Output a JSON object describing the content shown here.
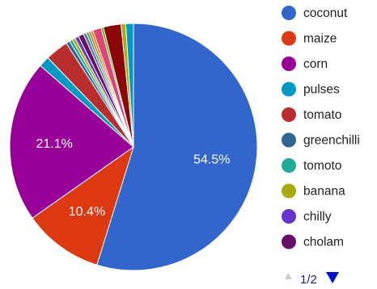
{
  "chart_data": {
    "type": "pie",
    "title": "",
    "slices": [
      {
        "label": "coconut",
        "value": 54.5,
        "color": "#3366cc",
        "display": "54.5%"
      },
      {
        "label": "maize",
        "value": 10.4,
        "color": "#dc3912",
        "display": "10.4%"
      },
      {
        "label": "corn",
        "value": 21.1,
        "color": "#990099",
        "display": "21.1%"
      },
      {
        "label": "pulses",
        "value": 1.4,
        "color": "#0099c6",
        "display": ""
      },
      {
        "label": "tomato",
        "value": 3.0,
        "color": "#b82e2e",
        "display": ""
      },
      {
        "label": "greenchilli",
        "value": 0.5,
        "color": "#316395",
        "display": ""
      },
      {
        "label": "tomoto",
        "value": 0.4,
        "color": "#22aa99",
        "display": ""
      },
      {
        "label": "banana",
        "value": 0.4,
        "color": "#aaaa11",
        "display": ""
      },
      {
        "label": "chilly",
        "value": 0.5,
        "color": "#6633cc",
        "display": ""
      },
      {
        "label": "cholam",
        "value": 0.7,
        "color": "#651067",
        "display": ""
      },
      {
        "label": "",
        "value": 0.4,
        "color": "#5574a6",
        "display": ""
      },
      {
        "label": "",
        "value": 0.3,
        "color": "#329262",
        "display": ""
      },
      {
        "label": "",
        "value": 0.3,
        "color": "#b77322",
        "display": ""
      },
      {
        "label": "",
        "value": 0.3,
        "color": "#e67300",
        "display": ""
      },
      {
        "label": "",
        "value": 1.1,
        "color": "#dd4477",
        "display": ""
      },
      {
        "label": "",
        "value": 0.3,
        "color": "#66aa00",
        "display": ""
      },
      {
        "label": "",
        "value": 2.3,
        "color": "#8b0707",
        "display": ""
      },
      {
        "label": "",
        "value": 0.6,
        "color": "#aaaa11",
        "display": ""
      },
      {
        "label": "",
        "value": 1.0,
        "color": "#0099c6",
        "display": ""
      }
    ],
    "legend_position": "right"
  },
  "legend": {
    "items": [
      "coconut",
      "maize",
      "corn",
      "pulses",
      "tomato",
      "greenchilli",
      "tomoto",
      "banana",
      "chilly",
      "cholam"
    ],
    "colors": [
      "#3366cc",
      "#dc3912",
      "#990099",
      "#0099c6",
      "#b82e2e",
      "#316395",
      "#22aa99",
      "#aaaa11",
      "#6633cc",
      "#651067"
    ]
  },
  "pager": {
    "text": "1/2",
    "prev_color": "#cccccc",
    "next_color": "#0011cc"
  }
}
